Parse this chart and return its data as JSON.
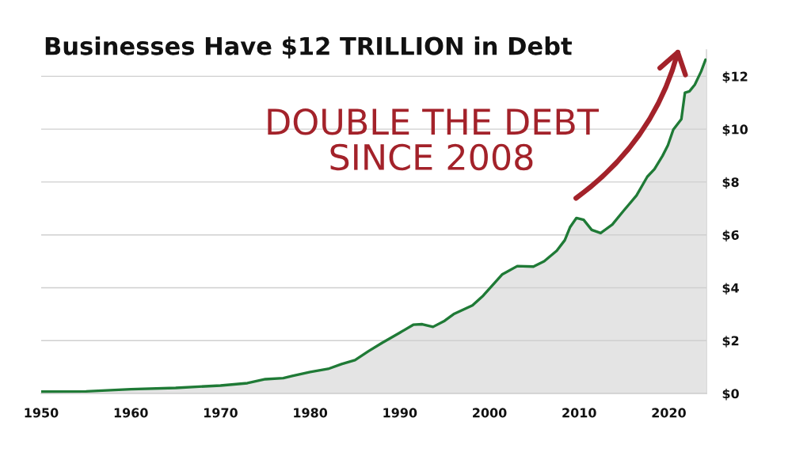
{
  "chart_data": {
    "type": "area",
    "title": "Businesses Have $12 TRILLION in Debt",
    "x": [
      1950.0,
      1955.0,
      1960.0,
      1965.0,
      1970.0,
      1973.0,
      1975.0,
      1977.0,
      1978.0,
      1980.0,
      1982.0,
      1983.5,
      1985.0,
      1986.5,
      1988.0,
      1990.0,
      1991.5,
      1992.5,
      1993.7,
      1995.0,
      1996.0,
      1998.1,
      1999.3,
      2001.4,
      2003.1,
      2004.9,
      2006.1,
      2007.5,
      2008.4,
      2009.0,
      2009.7,
      2010.5,
      2011.4,
      2012.4,
      2013.7,
      2014.9,
      2016.4,
      2017.6,
      2018.4,
      2019.3,
      2019.9,
      2020.5,
      2021.4,
      2021.8,
      2022.3,
      2022.9,
      2023.6,
      2024.1
    ],
    "series": [
      {
        "color": "#1f7a36",
        "values": [
          0.07,
          0.08,
          0.16,
          0.21,
          0.3,
          0.39,
          0.54,
          0.58,
          0.66,
          0.81,
          0.93,
          1.11,
          1.26,
          1.6,
          1.91,
          2.3,
          2.6,
          2.62,
          2.52,
          2.75,
          3.0,
          3.33,
          3.7,
          4.5,
          4.82,
          4.8,
          5.0,
          5.4,
          5.8,
          6.3,
          6.64,
          6.57,
          6.19,
          6.07,
          6.39,
          6.89,
          7.49,
          8.2,
          8.49,
          8.99,
          9.39,
          9.98,
          10.38,
          11.38,
          11.43,
          11.68,
          12.18,
          12.63
        ]
      }
    ],
    "xlim": [
      1950,
      2024.2
    ],
    "xticks": [
      1950,
      1960,
      1970,
      1980,
      1990,
      2000,
      2010,
      2020
    ],
    "ylim": [
      0,
      13
    ],
    "yticks": [
      {
        "value": 0,
        "label": "$0"
      },
      {
        "value": 2,
        "label": "$2"
      },
      {
        "value": 4,
        "label": "$4"
      },
      {
        "value": 6,
        "label": "$6"
      },
      {
        "value": 8,
        "label": "$8"
      },
      {
        "value": 10,
        "label": "$10"
      },
      {
        "value": 12,
        "label": "$12"
      }
    ],
    "grid": "y",
    "annotations": [
      "DOUBLE THE DEBT\nSINCE 2008"
    ]
  }
}
